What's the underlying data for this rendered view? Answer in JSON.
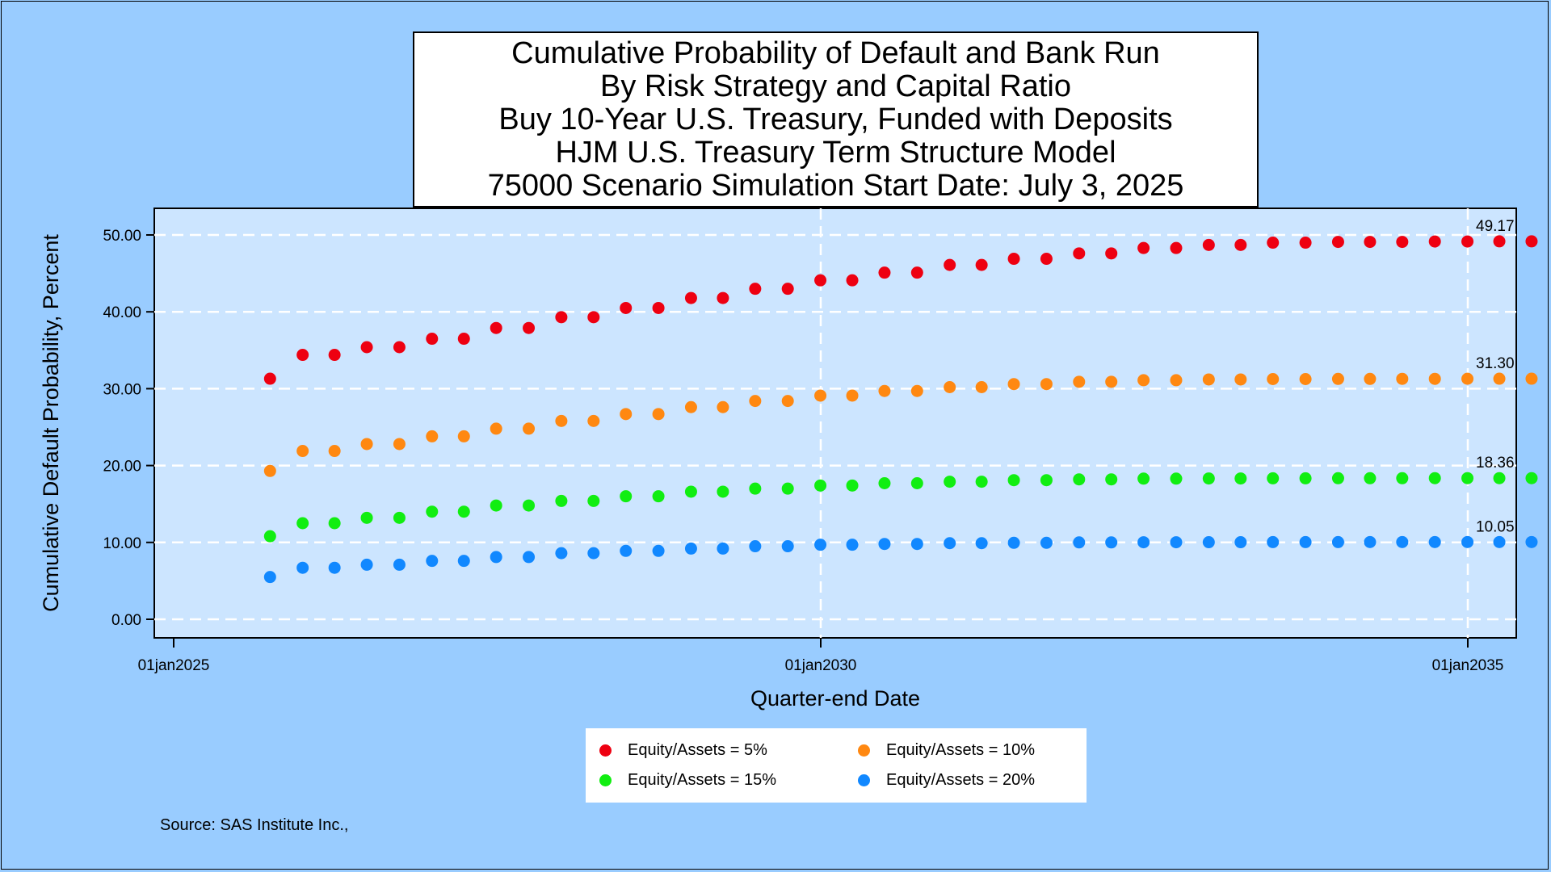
{
  "chart_data": {
    "type": "scatter",
    "title_lines": [
      "Cumulative Probability of Default and Bank Run",
      "By Risk Strategy and Capital Ratio",
      "Buy 10-Year U.S. Treasury, Funded with Deposits",
      "HJM U.S. Treasury Term Structure Model",
      "75000 Scenario Simulation Start Date: July 3, 2025"
    ],
    "xlabel": "Quarter-end Date",
    "ylabel": "Cumulative Default Probability, Percent",
    "x_ticks": [
      "01jan2025",
      "01jan2030",
      "01jan2035"
    ],
    "y_ticks": [
      "0.00",
      "10.00",
      "20.00",
      "30.00",
      "40.00",
      "50.00"
    ],
    "ylim": [
      0,
      52
    ],
    "grid": true,
    "legend_position": "bottom",
    "x": [
      "2025-09-30",
      "2025-12-31",
      "2026-03-31",
      "2026-06-30",
      "2026-09-30",
      "2026-12-31",
      "2027-03-31",
      "2027-06-30",
      "2027-09-30",
      "2027-12-31",
      "2028-03-31",
      "2028-06-30",
      "2028-09-30",
      "2028-12-31",
      "2029-03-31",
      "2029-06-30",
      "2029-09-30",
      "2029-12-31",
      "2030-03-31",
      "2030-06-30",
      "2030-09-30",
      "2030-12-31",
      "2031-03-31",
      "2031-06-30",
      "2031-09-30",
      "2031-12-31",
      "2032-03-31",
      "2032-06-30",
      "2032-09-30",
      "2032-12-31",
      "2033-03-31",
      "2033-06-30",
      "2033-09-30",
      "2033-12-31",
      "2034-03-31",
      "2034-06-30",
      "2034-09-30",
      "2034-12-31",
      "2035-03-31",
      "2035-06-30"
    ],
    "series": [
      {
        "name": "Equity/Assets = 5%",
        "color": "#ee0011",
        "end_label": "49.17",
        "values": [
          31.3,
          34.4,
          34.4,
          35.4,
          35.4,
          36.5,
          36.5,
          37.9,
          37.9,
          39.3,
          39.3,
          40.5,
          40.5,
          41.8,
          41.8,
          43.0,
          43.0,
          44.1,
          44.1,
          45.1,
          45.1,
          46.1,
          46.1,
          46.9,
          46.9,
          47.6,
          47.6,
          48.3,
          48.3,
          48.7,
          48.7,
          49.0,
          49.0,
          49.1,
          49.1,
          49.1,
          49.15,
          49.15,
          49.17,
          49.17
        ]
      },
      {
        "name": "Equity/Assets = 10%",
        "color": "#ff8811",
        "end_label": "31.30",
        "values": [
          19.3,
          21.9,
          21.9,
          22.8,
          22.8,
          23.8,
          23.8,
          24.8,
          24.8,
          25.8,
          25.8,
          26.7,
          26.7,
          27.6,
          27.6,
          28.4,
          28.4,
          29.1,
          29.1,
          29.7,
          29.7,
          30.2,
          30.2,
          30.6,
          30.6,
          30.9,
          30.9,
          31.1,
          31.1,
          31.2,
          31.2,
          31.25,
          31.25,
          31.27,
          31.27,
          31.28,
          31.28,
          31.29,
          31.3,
          31.3
        ]
      },
      {
        "name": "Equity/Assets = 15%",
        "color": "#11ee11",
        "end_label": "18.36",
        "values": [
          10.8,
          12.5,
          12.5,
          13.2,
          13.2,
          14.0,
          14.0,
          14.8,
          14.8,
          15.4,
          15.4,
          16.0,
          16.0,
          16.6,
          16.6,
          17.0,
          17.0,
          17.4,
          17.4,
          17.7,
          17.7,
          17.9,
          17.9,
          18.1,
          18.1,
          18.2,
          18.2,
          18.3,
          18.3,
          18.32,
          18.32,
          18.34,
          18.34,
          18.35,
          18.35,
          18.35,
          18.36,
          18.36,
          18.36,
          18.36
        ]
      },
      {
        "name": "Equity/Assets = 20%",
        "color": "#1188ff",
        "end_label": "10.05",
        "values": [
          5.5,
          6.7,
          6.7,
          7.1,
          7.1,
          7.6,
          7.6,
          8.1,
          8.1,
          8.6,
          8.6,
          8.9,
          8.9,
          9.2,
          9.2,
          9.5,
          9.5,
          9.7,
          9.7,
          9.8,
          9.8,
          9.9,
          9.9,
          9.95,
          9.95,
          10.0,
          10.0,
          10.02,
          10.02,
          10.03,
          10.03,
          10.04,
          10.04,
          10.04,
          10.05,
          10.05,
          10.05,
          10.05,
          10.05,
          10.05
        ]
      }
    ],
    "source": "Source: SAS Institute Inc.,"
  }
}
